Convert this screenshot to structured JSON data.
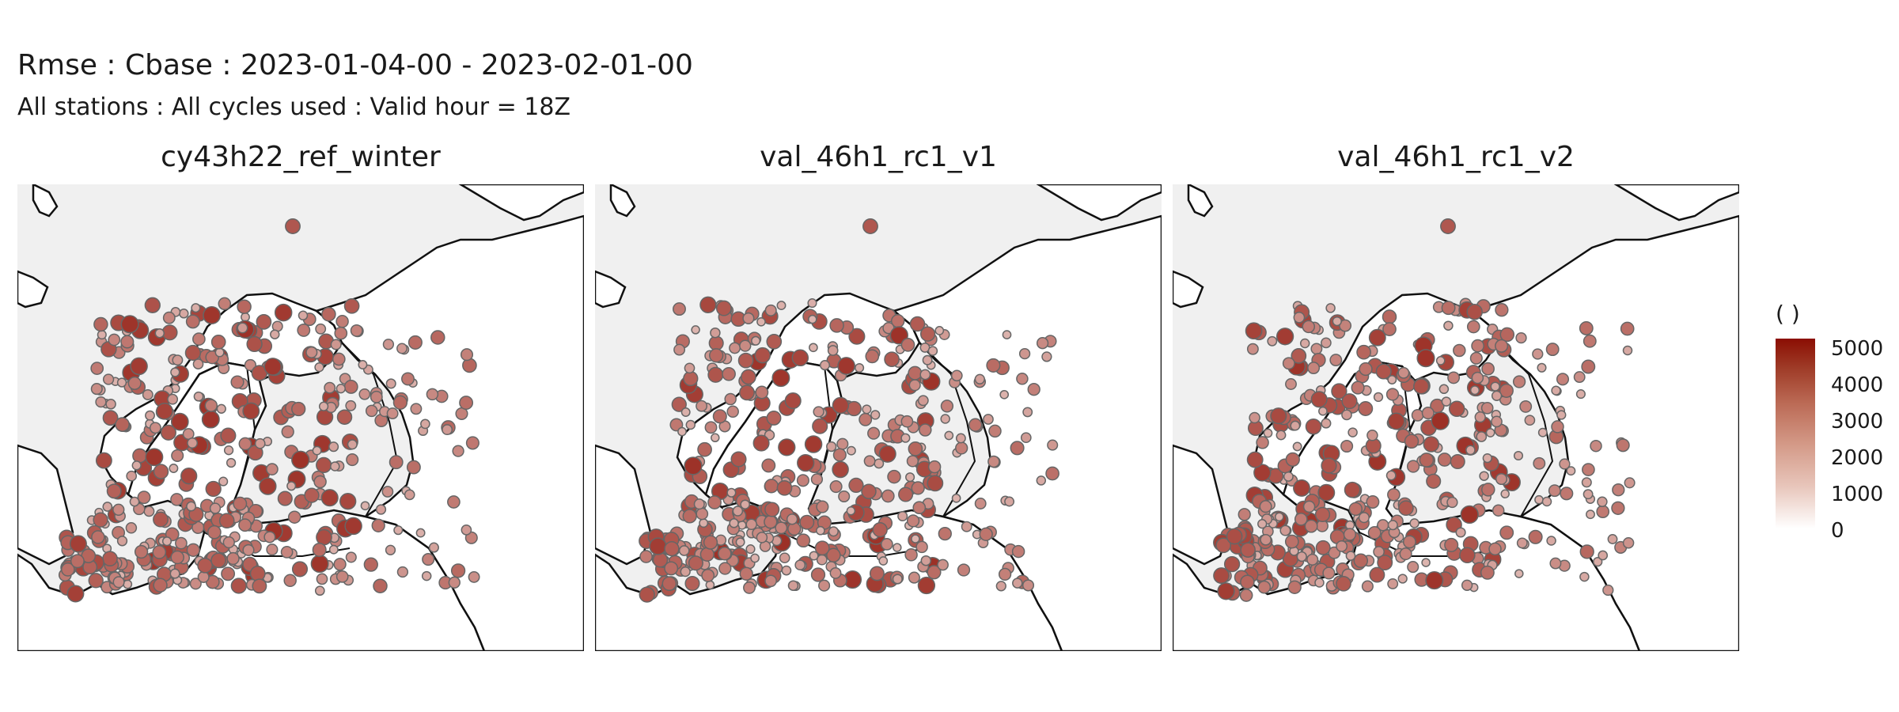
{
  "header": {
    "title": "Rmse : Cbase : 2023-01-04-00 - 2023-02-01-00",
    "subtitle": "All stations : All cycles used : Valid hour = 18Z"
  },
  "panels": [
    {
      "title": "cy43h22_ref_winter"
    },
    {
      "title": "val_46h1_rc1_v1"
    },
    {
      "title": "val_46h1_rc1_v2"
    }
  ],
  "legend": {
    "title": "( )",
    "ticks": [
      "5000",
      "4000",
      "3000",
      "2000",
      "1000",
      "0"
    ],
    "range": [
      0,
      5500
    ],
    "colors": {
      "low": "#ffffff",
      "high": "#8b0e03",
      "point_outline": "#666666",
      "land": "#f0f0f0"
    }
  }
}
